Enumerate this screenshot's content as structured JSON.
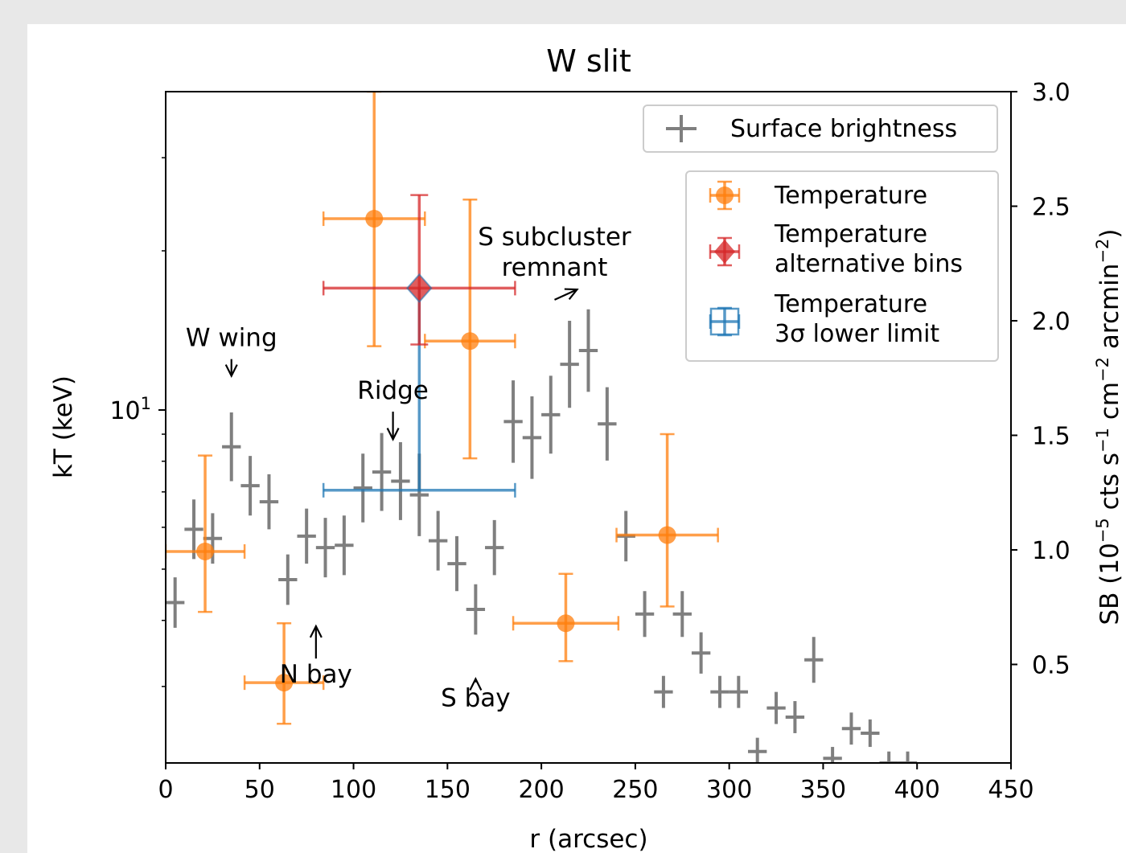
{
  "chart_data": {
    "type": "scatter",
    "title": "W slit",
    "xlabel": "r (arcsec)",
    "ylabel": "kT (keV)",
    "y2label": "SB (10$^{-5}$ cts s$^{-1}$ cm$^{-2}$ arcmin$^{-2}$)",
    "xlim": [
      0,
      450
    ],
    "ylim_log": [
      2.15,
      40
    ],
    "y2lim": [
      0.07,
      3.0
    ],
    "x_ticks": [
      0,
      50,
      100,
      150,
      200,
      250,
      300,
      350,
      400,
      450
    ],
    "y2_ticks": [
      0.5,
      1.0,
      1.5,
      2.0,
      2.5,
      3.0
    ],
    "y_tick_major_label": "10^1",
    "colors": {
      "surface_brightness": "#7f7f7f",
      "temperature": "#ff7f0e",
      "alt_bins": "#d62728",
      "lower_limit": "#1f77b4"
    },
    "legend_sb": {
      "placement": "upper right",
      "label": "Surface brightness"
    },
    "legend_temp": {
      "placement": "upper right",
      "entries": [
        {
          "label": "Temperature",
          "color": "#ff7f0e",
          "marker": "circle"
        },
        {
          "label": "Temperature\nalternative bins",
          "color": "#d62728",
          "marker": "diamond"
        },
        {
          "label": "Temperature\n3σ lower limit",
          "color": "#1f77b4",
          "marker": "box"
        }
      ]
    },
    "series": [
      {
        "name": "Temperature",
        "axis": "left",
        "points": [
          {
            "x": 21,
            "xerr": 21,
            "y": 5.4,
            "ylo": 4.15,
            "yhi": 8.2
          },
          {
            "x": 63,
            "xerr": 21,
            "y": 3.05,
            "ylo": 2.55,
            "yhi": 3.95
          },
          {
            "x": 111,
            "xerr": 27,
            "y": 23.0,
            "ylo": 13.2,
            "yhi": 40.0
          },
          {
            "x": 162,
            "xerr": 24,
            "y": 13.5,
            "ylo": 8.1,
            "yhi": 25.0
          },
          {
            "x": 213,
            "xerr": 28,
            "y": 3.95,
            "ylo": 3.35,
            "yhi": 4.9
          },
          {
            "x": 267,
            "xerr": 27,
            "y": 5.8,
            "ylo": 4.25,
            "yhi": 9.0
          }
        ]
      },
      {
        "name": "Temperature alternative bins",
        "axis": "left",
        "points": [
          {
            "x": 135,
            "xerr": 51,
            "y": 17.0,
            "ylo": 13.3,
            "yhi": 25.5
          }
        ]
      },
      {
        "name": "Temperature 3σ lower limit",
        "axis": "left",
        "points": [
          {
            "x": 135,
            "xerr": 51,
            "y": 7.05,
            "yhi": 17.0
          }
        ]
      },
      {
        "name": "Surface brightness",
        "axis": "right",
        "points": [
          {
            "x": 5,
            "y": 0.77,
            "yerr": 0.11
          },
          {
            "x": 15,
            "y": 1.09,
            "yerr": 0.13
          },
          {
            "x": 25,
            "y": 1.05,
            "yerr": 0.11
          },
          {
            "x": 35,
            "y": 1.45,
            "yerr": 0.15
          },
          {
            "x": 45,
            "y": 1.28,
            "yerr": 0.13
          },
          {
            "x": 55,
            "y": 1.21,
            "yerr": 0.12
          },
          {
            "x": 65,
            "y": 0.87,
            "yerr": 0.11
          },
          {
            "x": 75,
            "y": 1.06,
            "yerr": 0.12
          },
          {
            "x": 85,
            "y": 1.01,
            "yerr": 0.13
          },
          {
            "x": 95,
            "y": 1.02,
            "yerr": 0.13
          },
          {
            "x": 105,
            "y": 1.27,
            "yerr": 0.15
          },
          {
            "x": 115,
            "y": 1.34,
            "yerr": 0.17
          },
          {
            "x": 125,
            "y": 1.3,
            "yerr": 0.17
          },
          {
            "x": 135,
            "y": 1.24,
            "yerr": 0.18
          },
          {
            "x": 145,
            "y": 1.04,
            "yerr": 0.13
          },
          {
            "x": 155,
            "y": 0.94,
            "yerr": 0.12
          },
          {
            "x": 165,
            "y": 0.74,
            "yerr": 0.11
          },
          {
            "x": 175,
            "y": 1.01,
            "yerr": 0.12
          },
          {
            "x": 185,
            "y": 1.56,
            "yerr": 0.18
          },
          {
            "x": 195,
            "y": 1.49,
            "yerr": 0.18
          },
          {
            "x": 205,
            "y": 1.59,
            "yerr": 0.17
          },
          {
            "x": 215,
            "y": 1.81,
            "yerr": 0.19
          },
          {
            "x": 225,
            "y": 1.87,
            "yerr": 0.18
          },
          {
            "x": 235,
            "y": 1.55,
            "yerr": 0.16
          },
          {
            "x": 245,
            "y": 1.06,
            "yerr": 0.11
          },
          {
            "x": 255,
            "y": 0.72,
            "yerr": 0.1
          },
          {
            "x": 265,
            "y": 0.38,
            "yerr": 0.07
          },
          {
            "x": 275,
            "y": 0.72,
            "yerr": 0.1
          },
          {
            "x": 285,
            "y": 0.55,
            "yerr": 0.09
          },
          {
            "x": 295,
            "y": 0.38,
            "yerr": 0.07
          },
          {
            "x": 305,
            "y": 0.38,
            "yerr": 0.07
          },
          {
            "x": 315,
            "y": 0.12,
            "yerr": 0.06
          },
          {
            "x": 325,
            "y": 0.31,
            "yerr": 0.07
          },
          {
            "x": 335,
            "y": 0.27,
            "yerr": 0.07
          },
          {
            "x": 345,
            "y": 0.52,
            "yerr": 0.1
          },
          {
            "x": 355,
            "y": 0.09,
            "yerr": 0.05
          },
          {
            "x": 365,
            "y": 0.22,
            "yerr": 0.07
          },
          {
            "x": 375,
            "y": 0.2,
            "yerr": 0.06
          },
          {
            "x": 385,
            "y": 0.07,
            "yerr": 0.05
          },
          {
            "x": 395,
            "y": 0.07,
            "yerr": 0.05
          }
        ]
      }
    ],
    "annotations": [
      {
        "text": "W wing",
        "x": 35,
        "y": 13.2,
        "arrow_to_x": 35,
        "arrow_to_y": 11.6
      },
      {
        "text": "Ridge",
        "x": 121,
        "y": 10.5,
        "arrow_to_x": 121,
        "arrow_to_y": 8.8
      },
      {
        "text": "S subcluster\nremnant",
        "x": 207,
        "y": 20.5,
        "arrow_to_x": 219,
        "arrow_to_y": 16.9
      },
      {
        "text": "N bay",
        "x": 80,
        "y": 3.05,
        "arrow_to_x": 80,
        "arrow_to_y": 3.9
      },
      {
        "text": "S bay",
        "x": 165,
        "y": 2.75,
        "arrow_to_x": 165,
        "arrow_to_y": 3.1
      }
    ]
  }
}
